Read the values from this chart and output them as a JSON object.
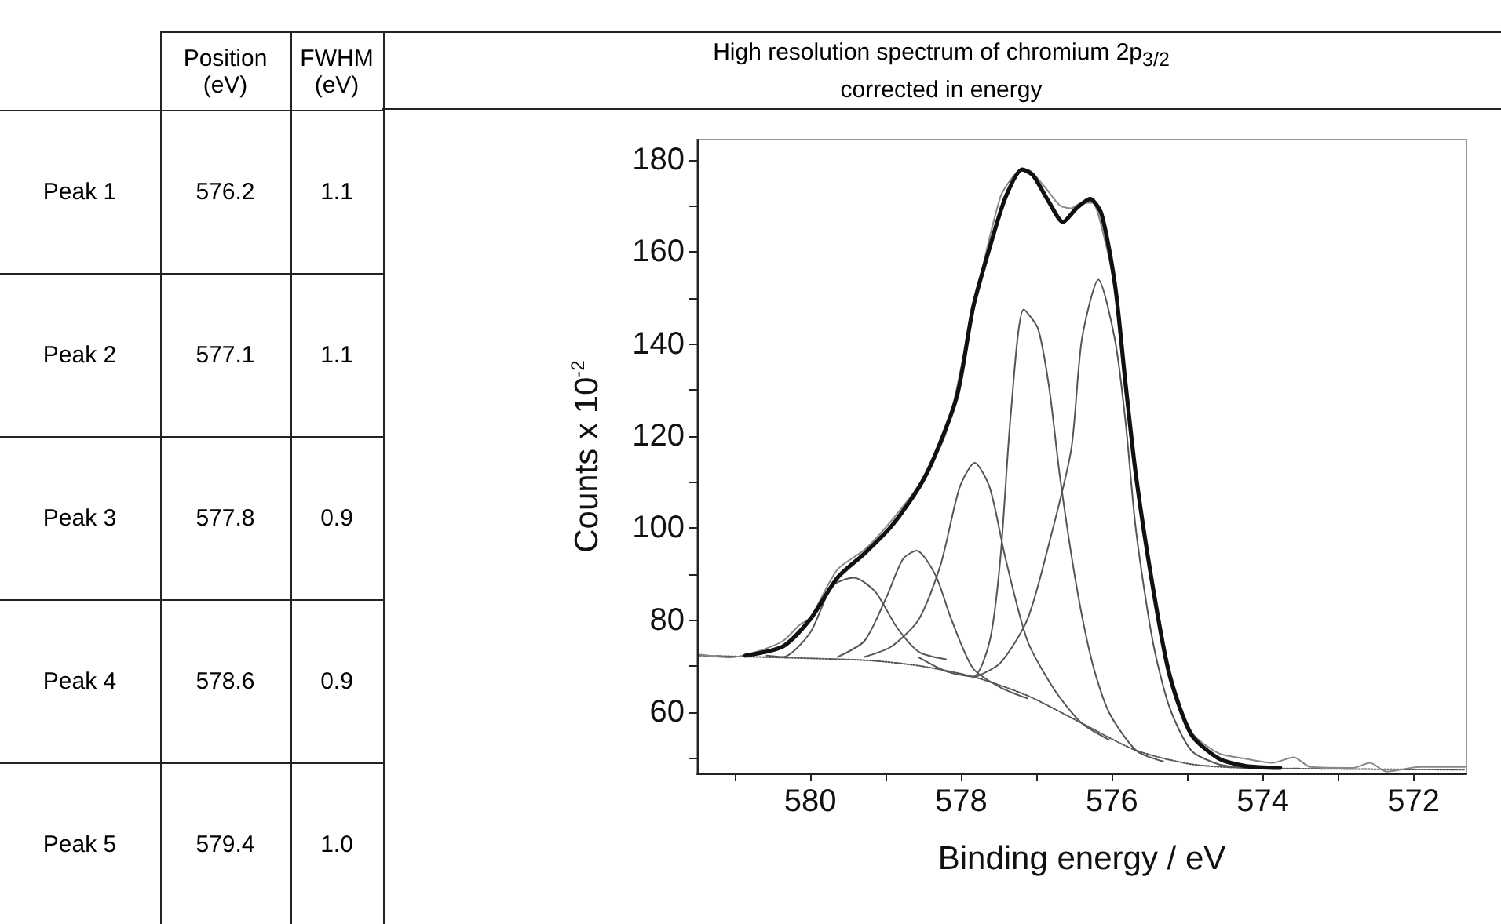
{
  "chart_data": [
    {
      "type": "other",
      "categories": [
        "Peak 1",
        "Peak 2",
        "Peak 3",
        "Peak 4",
        "Peak 5"
      ],
      "data_labels": true,
      "series": [
        {
          "name": "Position (eV)",
          "values": [
            576.2,
            577.1,
            577.8,
            578.6,
            579.4
          ],
          "value_labels": [
            "576.2",
            "577.1",
            "577.8",
            "578.6",
            "579.4"
          ]
        },
        {
          "name": "FWHM (eV)",
          "values": [
            1.1,
            1.1,
            0.9,
            0.9,
            1.0
          ],
          "value_labels": [
            "1.1",
            "1.1",
            "0.9",
            "0.9",
            "1.0"
          ]
        }
      ]
    },
    {
      "type": "line",
      "title": "High resolution spectrum of chromium 2p$_{3/2}$ corrected in energy",
      "xlabel": "Binding energy / eV",
      "ylabel": "Counts x 10$^{-2}$",
      "xlim": [
        581.5,
        571.3
      ],
      "ylim": [
        46.7,
        184.4
      ],
      "grid": false,
      "marker": "none",
      "xticks": [
        {
          "value": 581,
          "label": null
        },
        580,
        {
          "value": 579,
          "label": null
        },
        578,
        {
          "value": 577,
          "label": null
        },
        576,
        {
          "value": 575,
          "label": null
        },
        574,
        {
          "value": 573,
          "label": null
        },
        572
      ],
      "yticks": [
        {
          "value": 50,
          "label": null
        },
        60,
        {
          "value": 70,
          "label": null
        },
        80,
        {
          "value": 90,
          "label": null
        },
        100,
        {
          "value": 110,
          "label": null
        },
        120,
        {
          "value": 130,
          "label": null
        },
        140,
        {
          "value": 150,
          "label": null
        },
        160,
        {
          "value": 170,
          "label": null
        },
        180
      ],
      "series": [
        {
          "color": "#555555",
          "line_style": "dotted",
          "x": [
            581.46,
            579.28,
            578.56,
            577.84,
            577.12,
            576.4,
            575.68,
            574.95,
            574.23,
            571.32
          ],
          "values": [
            72.3,
            71.3,
            70.1,
            67.7,
            63.6,
            57.6,
            51.7,
            48.7,
            47.9,
            47.5
          ]
        },
        {
          "color": "#555555",
          "line_style": "solid",
          "x": [
            577.84,
            577.48,
            577.12,
            576.83,
            576.54,
            576.4,
            576.18,
            575.96,
            575.82,
            575.68,
            575.46,
            575.24,
            574.95,
            574.59,
            574.23
          ],
          "values": [
            67.4,
            70.7,
            80.2,
            96.9,
            117.1,
            140.9,
            154,
            140.9,
            123.1,
            99.3,
            75.5,
            61.2,
            51.7,
            48.7,
            47.9
          ]
        },
        {
          "color": "#555555",
          "line_style": "solid",
          "x": [
            578.56,
            578.2,
            577.84,
            577.62,
            577.48,
            577.34,
            577.17,
            576.98,
            576.83,
            576.69,
            576.47,
            576.26,
            576.04,
            575.68,
            575.32
          ],
          "values": [
            71.9,
            68.9,
            67.7,
            75.5,
            93.3,
            125.0,
            147.5,
            143.3,
            130.2,
            111.2,
            87.4,
            70.7,
            60,
            51.7,
            49.3
          ]
        },
        {
          "color": "#555555",
          "line_style": "solid",
          "x": [
            579.28,
            578.92,
            578.56,
            578.27,
            578.02,
            577.82,
            577.62,
            577.41,
            577.12,
            576.76,
            576.4,
            576.04
          ],
          "values": [
            72,
            74.3,
            80.2,
            92.1,
            108.8,
            114.2,
            108.8,
            93.3,
            75.5,
            64.8,
            57.6,
            54
          ]
        },
        {
          "color": "#555555",
          "line_style": "solid",
          "x": [
            579.64,
            579.28,
            578.99,
            578.77,
            578.59,
            578.34,
            578.13,
            577.84,
            577.48,
            577.12
          ],
          "values": [
            72,
            75.5,
            85,
            93.3,
            95.1,
            89.8,
            80.2,
            69.5,
            65.4,
            63
          ]
        },
        {
          "color": "#555555",
          "line_style": "solid",
          "x": [
            580.58,
            580.36,
            580.0,
            579.71,
            579.42,
            579.14,
            578.85,
            578.56,
            578.2
          ],
          "values": [
            72.3,
            72,
            77.3,
            87.4,
            89.2,
            86.2,
            78.4,
            73.1,
            71.5
          ]
        },
        {
          "color": "#888888",
          "line_style": "solid",
          "x": [
            581.46,
            581.08,
            580.72,
            580.36,
            580.14,
            580.0,
            579.64,
            579.28,
            578.92,
            578.56,
            578.2,
            577.84,
            577.48,
            577.26,
            577.12,
            576.9,
            576.69,
            576.54,
            576.4,
            576.26,
            576.11,
            575.96,
            575.82,
            575.68,
            575.46,
            575.24,
            574.95,
            574.59,
            574.23,
            573.87,
            573.59,
            573.37,
            572.8,
            572.58,
            572.36,
            571.92,
            571.32
          ],
          "values": [
            72.5,
            71.9,
            73.1,
            75.5,
            79,
            80.5,
            91,
            95.3,
            101.7,
            109.4,
            120.7,
            147.5,
            171.9,
            177.3,
            177.9,
            174.3,
            170.1,
            169.5,
            170.7,
            170.7,
            163.6,
            151.7,
            130.2,
            111.2,
            88.6,
            69.5,
            55.8,
            51.1,
            49.9,
            49,
            50.2,
            48.1,
            47.9,
            49,
            47.1,
            48.1,
            48.1
          ]
        },
        {
          "color": "#111111",
          "line_style": "solid",
          "x": [
            580.86,
            580.36,
            580.0,
            579.64,
            579.28,
            578.92,
            578.56,
            578.34,
            578.05,
            577.84,
            577.62,
            577.41,
            577.19,
            577.05,
            576.83,
            576.65,
            576.47,
            576.29,
            576.14,
            575.96,
            575.82,
            575.68,
            575.46,
            575.24,
            574.95,
            574.59,
            574.23,
            573.77
          ],
          "values": [
            72.3,
            74.3,
            80.2,
            89.2,
            94.5,
            100.5,
            108.8,
            116,
            129,
            148,
            161,
            171.9,
            177.9,
            176.7,
            170.7,
            166.5,
            169.5,
            171.5,
            168.3,
            152.9,
            131.4,
            111.2,
            87.4,
            68.3,
            55.2,
            50,
            48.3,
            47.9
          ]
        }
      ]
    }
  ]
}
